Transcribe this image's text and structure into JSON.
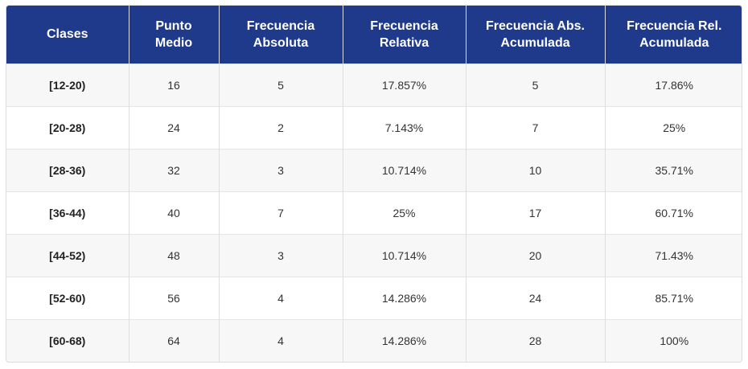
{
  "table": {
    "headers": [
      {
        "lines": [
          "Clases"
        ]
      },
      {
        "lines": [
          "Punto",
          "Medio"
        ]
      },
      {
        "lines": [
          "Frecuencia",
          "Absoluta"
        ]
      },
      {
        "lines": [
          "Frecuencia",
          "Relativa"
        ]
      },
      {
        "lines": [
          "Frecuencia Abs.",
          "Acumulada"
        ]
      },
      {
        "lines": [
          "Frecuencia Rel.",
          "Acumulada"
        ]
      }
    ],
    "rows": [
      [
        "[12-20)",
        "16",
        "5",
        "17.857%",
        "5",
        "17.86%"
      ],
      [
        "[20-28)",
        "24",
        "2",
        "7.143%",
        "7",
        "25%"
      ],
      [
        "[28-36)",
        "32",
        "3",
        "10.714%",
        "10",
        "35.71%"
      ],
      [
        "[36-44)",
        "40",
        "7",
        "25%",
        "17",
        "60.71%"
      ],
      [
        "[44-52)",
        "48",
        "3",
        "10.714%",
        "20",
        "71.43%"
      ],
      [
        "[52-60)",
        "56",
        "4",
        "14.286%",
        "24",
        "85.71%"
      ],
      [
        "[60-68)",
        "64",
        "4",
        "14.286%",
        "28",
        "100%"
      ]
    ]
  },
  "colors": {
    "header_bg": "#1f3a8a",
    "header_text": "#ffffff",
    "row_alt_bg": "#f7f7f7"
  }
}
